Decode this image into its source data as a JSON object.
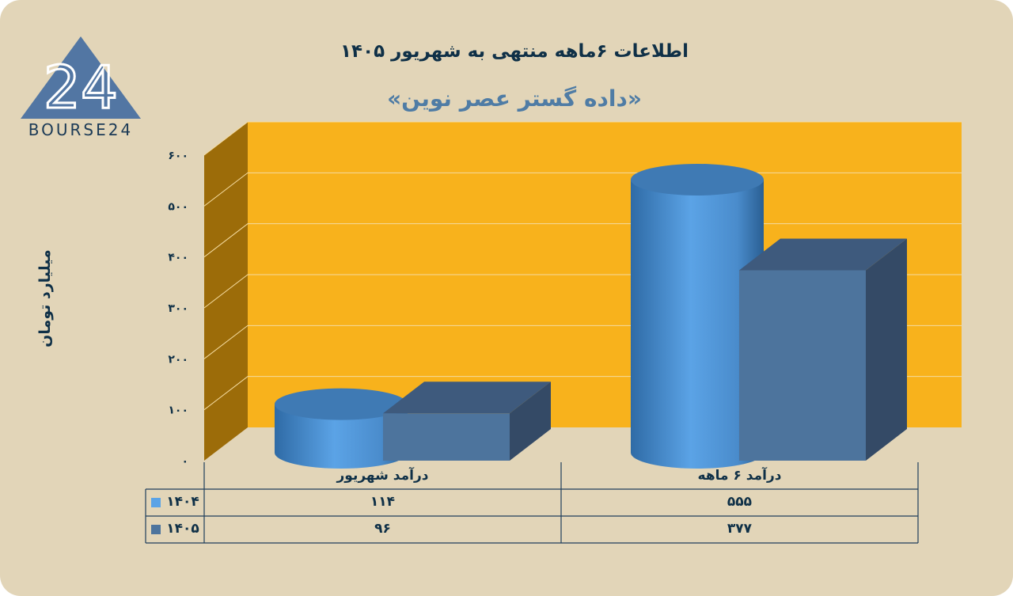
{
  "title": "اطلاعات ۶ماهه منتهی به شهریور ۱۴۰۵",
  "subtitle": "«داده گستر عصر نوین»",
  "logo": {
    "text": "BOURSE24",
    "mark": "24"
  },
  "chart_data": {
    "type": "bar",
    "categories": [
      "درآمد شهریور",
      "درآمد ۶ ماهه"
    ],
    "series": [
      {
        "name": "۱۴۰۴",
        "values": [
          114,
          555
        ],
        "value_labels": [
          "۱۱۴",
          "۵۵۵"
        ],
        "shape": "cylinder",
        "color": "#5ba3e6"
      },
      {
        "name": "۱۴۰۵",
        "values": [
          96,
          377
        ],
        "value_labels": [
          "۹۶",
          "۳۷۷"
        ],
        "shape": "box",
        "color": "#4d749d"
      }
    ],
    "title": "اطلاعات ۶ماهه منتهی به شهریور ۱۴۰۵",
    "ylabel": "میلیارد تومان",
    "ylim": [
      0,
      600
    ],
    "yticks": [
      0,
      100,
      200,
      300,
      400,
      500,
      600
    ],
    "ytick_labels": [
      "۰",
      "۱۰۰",
      "۲۰۰",
      "۳۰۰",
      "۴۰۰",
      "۵۰۰",
      "۶۰۰"
    ],
    "grid": true,
    "legend": "data-table",
    "wall_color": "#f8b21c",
    "side_wall_color": "#9c6c09"
  }
}
